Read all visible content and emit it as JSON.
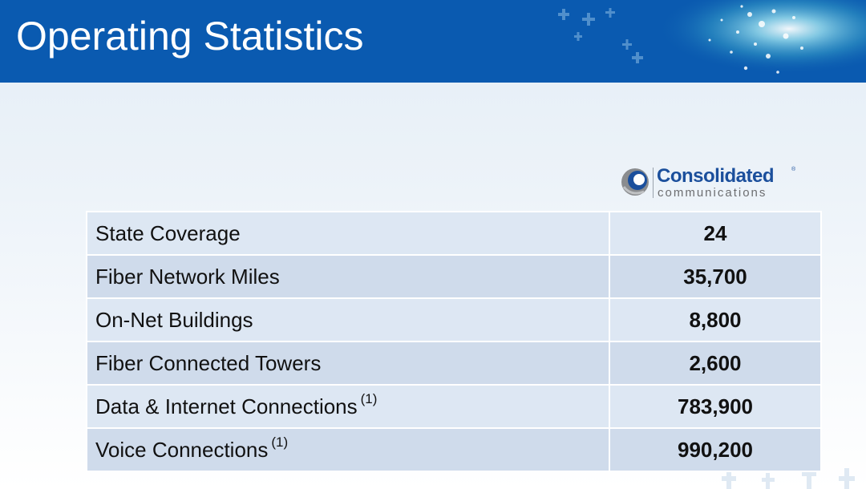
{
  "slide": {
    "title": "Operating Statistics"
  },
  "logo": {
    "brand": "Consolidated",
    "registered": "®",
    "sub": "communications"
  },
  "table": {
    "rows": [
      {
        "label": "State Coverage",
        "footnote": "",
        "value": "24"
      },
      {
        "label": "Fiber Network Miles",
        "footnote": "",
        "value": "35,700"
      },
      {
        "label": "On-Net Buildings",
        "footnote": "",
        "value": "8,800"
      },
      {
        "label": "Fiber Connected Towers",
        "footnote": "",
        "value": "2,600"
      },
      {
        "label": "Data & Internet Connections",
        "footnote": "(1)",
        "value": "783,900"
      },
      {
        "label": "Voice Connections",
        "footnote": "(1)",
        "value": "990,200"
      }
    ]
  },
  "colors": {
    "header": "#0a5ab0",
    "brand": "#1b4f9c"
  }
}
